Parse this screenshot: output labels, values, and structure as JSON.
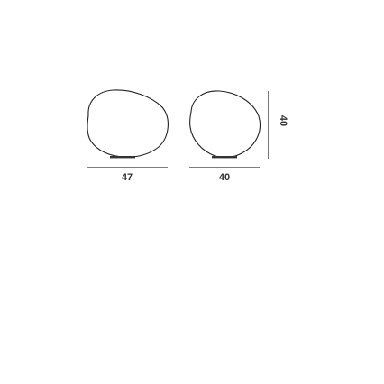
{
  "dimensions": {
    "left_lamp_width": "47",
    "right_lamp_width": "40",
    "height": "40"
  },
  "colors": {
    "line": "#222222",
    "dimension_line": "#555555",
    "text": "#333333",
    "background": "#ffffff"
  }
}
